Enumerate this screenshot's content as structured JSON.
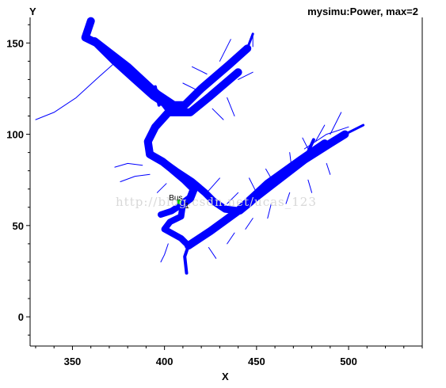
{
  "chart_data": {
    "type": "line",
    "title": "mysimu:Power, max=2",
    "xlabel": "X",
    "ylabel": "Y",
    "xlim": [
      327,
      540
    ],
    "ylim": [
      -16,
      164
    ],
    "xticks": [
      350,
      400,
      450,
      500
    ],
    "yticks": [
      0,
      50,
      100,
      150
    ],
    "grid": false,
    "series_color": "#0000ff",
    "watermark": "http://blog.csdn.net/ucas_123",
    "point_labels": [
      "Bus",
      "1"
    ],
    "series": [
      {
        "width": 10,
        "points": [
          [
            360,
            162
          ],
          [
            357,
            153
          ],
          [
            363,
            150
          ],
          [
            373,
            140
          ],
          [
            384,
            130
          ],
          [
            394,
            121
          ],
          [
            400,
            117
          ],
          [
            403,
            113
          ],
          [
            395,
            104
          ],
          [
            391,
            96
          ],
          [
            392,
            89
          ],
          [
            399,
            85
          ],
          [
            404,
            81
          ],
          [
            411,
            75
          ],
          [
            416,
            70
          ],
          [
            414,
            65
          ],
          [
            410,
            62
          ]
        ]
      },
      {
        "width": 10,
        "points": [
          [
            362,
            151
          ],
          [
            380,
            137
          ],
          [
            396,
            122
          ],
          [
            405,
            116
          ],
          [
            411,
            116
          ],
          [
            420,
            125
          ],
          [
            435,
            138
          ],
          [
            445,
            147
          ]
        ]
      },
      {
        "width": 10,
        "points": [
          [
            403,
            112
          ],
          [
            414,
            112
          ],
          [
            425,
            121
          ],
          [
            440,
            134
          ]
        ]
      },
      {
        "width": 9,
        "points": [
          [
            399,
            85
          ],
          [
            406,
            80
          ],
          [
            415,
            74
          ],
          [
            422,
            68
          ],
          [
            427,
            63
          ],
          [
            433,
            59
          ],
          [
            441,
            58
          ],
          [
            447,
            63
          ]
        ]
      },
      {
        "width": 10,
        "points": [
          [
            441,
            59
          ],
          [
            456,
            73
          ],
          [
            474,
            86
          ],
          [
            487,
            95
          ]
        ]
      },
      {
        "width": 8,
        "points": [
          [
            410,
            62
          ],
          [
            404,
            58
          ],
          [
            398,
            56
          ]
        ]
      },
      {
        "width": 8,
        "points": [
          [
            410,
            62
          ],
          [
            409,
            55
          ],
          [
            403,
            52
          ],
          [
            400,
            48
          ],
          [
            409,
            43
          ],
          [
            413,
            39
          ]
        ]
      },
      {
        "width": 10,
        "points": [
          [
            413,
            39
          ],
          [
            425,
            47
          ],
          [
            440,
            58
          ],
          [
            458,
            72
          ],
          [
            476,
            86
          ],
          [
            490,
            95
          ],
          [
            498,
            100
          ]
        ]
      },
      {
        "width": 4,
        "points": [
          [
            413,
            39
          ],
          [
            411,
            33
          ],
          [
            412,
            24
          ]
        ]
      },
      {
        "width": 4,
        "points": [
          [
            397,
            116
          ],
          [
            395,
            126
          ]
        ]
      },
      {
        "width": 3,
        "points": [
          [
            445,
            147
          ],
          [
            448,
            155
          ]
        ]
      },
      {
        "width": 4,
        "points": [
          [
            476,
            86
          ],
          [
            481,
            97
          ]
        ]
      },
      {
        "width": 3,
        "points": [
          [
            490,
            95
          ],
          [
            498,
            100
          ],
          [
            508,
            105
          ]
        ]
      },
      {
        "width": 1,
        "points": [
          [
            330,
            108
          ],
          [
            340,
            112
          ],
          [
            352,
            120
          ],
          [
            365,
            132
          ],
          [
            374,
            140
          ]
        ]
      },
      {
        "width": 1,
        "points": [
          [
            476,
            92
          ],
          [
            488,
            100
          ],
          [
            500,
            104
          ]
        ]
      },
      {
        "width": 1,
        "points": [
          [
            448,
            148
          ],
          [
            448,
            154
          ]
        ]
      },
      {
        "width": 1,
        "points": [
          [
            440,
            130
          ],
          [
            448,
            134
          ]
        ]
      },
      {
        "width": 1,
        "points": [
          [
            430,
            140
          ],
          [
            436,
            152
          ]
        ]
      },
      {
        "width": 1,
        "points": [
          [
            423,
            133
          ],
          [
            415,
            137
          ]
        ]
      },
      {
        "width": 1,
        "points": [
          [
            418,
            124
          ],
          [
            410,
            128
          ]
        ]
      },
      {
        "width": 1,
        "points": [
          [
            434,
            120
          ],
          [
            438,
            110
          ]
        ]
      },
      {
        "width": 1,
        "points": [
          [
            426,
            114
          ],
          [
            432,
            108
          ]
        ]
      },
      {
        "width": 1,
        "points": [
          [
            388,
            83
          ],
          [
            380,
            84
          ],
          [
            373,
            82
          ]
        ]
      },
      {
        "width": 1,
        "points": [
          [
            392,
            78
          ],
          [
            384,
            77
          ],
          [
            376,
            74
          ]
        ]
      },
      {
        "width": 1,
        "points": [
          [
            401,
            73
          ],
          [
            396,
            68
          ]
        ]
      },
      {
        "width": 1,
        "points": [
          [
            423,
            68
          ],
          [
            430,
            76
          ]
        ]
      },
      {
        "width": 1,
        "points": [
          [
            434,
            62
          ],
          [
            440,
            68
          ]
        ]
      },
      {
        "width": 1,
        "points": [
          [
            450,
            68
          ],
          [
            446,
            76
          ]
        ]
      },
      {
        "width": 1,
        "points": [
          [
            459,
            74
          ],
          [
            455,
            81
          ]
        ]
      },
      {
        "width": 1,
        "points": [
          [
            469,
            82
          ],
          [
            468,
            90
          ]
        ]
      },
      {
        "width": 1,
        "points": [
          [
            479,
            90
          ],
          [
            475,
            98
          ]
        ]
      },
      {
        "width": 1,
        "points": [
          [
            482,
            96
          ],
          [
            487,
            105
          ]
        ]
      },
      {
        "width": 1,
        "points": [
          [
            490,
            100
          ],
          [
            496,
            112
          ]
        ]
      },
      {
        "width": 1,
        "points": [
          [
            438,
            46
          ],
          [
            434,
            40
          ]
        ]
      },
      {
        "width": 1,
        "points": [
          [
            448,
            54
          ],
          [
            444,
            48
          ]
        ]
      },
      {
        "width": 1,
        "points": [
          [
            458,
            62
          ],
          [
            456,
            54
          ]
        ]
      },
      {
        "width": 1,
        "points": [
          [
            468,
            68
          ],
          [
            466,
            62
          ]
        ]
      },
      {
        "width": 1,
        "points": [
          [
            478,
            75
          ],
          [
            480,
            68
          ]
        ]
      },
      {
        "width": 1,
        "points": [
          [
            488,
            84
          ],
          [
            490,
            78
          ]
        ]
      },
      {
        "width": 1,
        "points": [
          [
            424,
            38
          ],
          [
            428,
            32
          ]
        ]
      },
      {
        "width": 1,
        "points": [
          [
            402,
            40
          ],
          [
            400,
            34
          ],
          [
            398,
            30
          ]
        ]
      }
    ]
  }
}
